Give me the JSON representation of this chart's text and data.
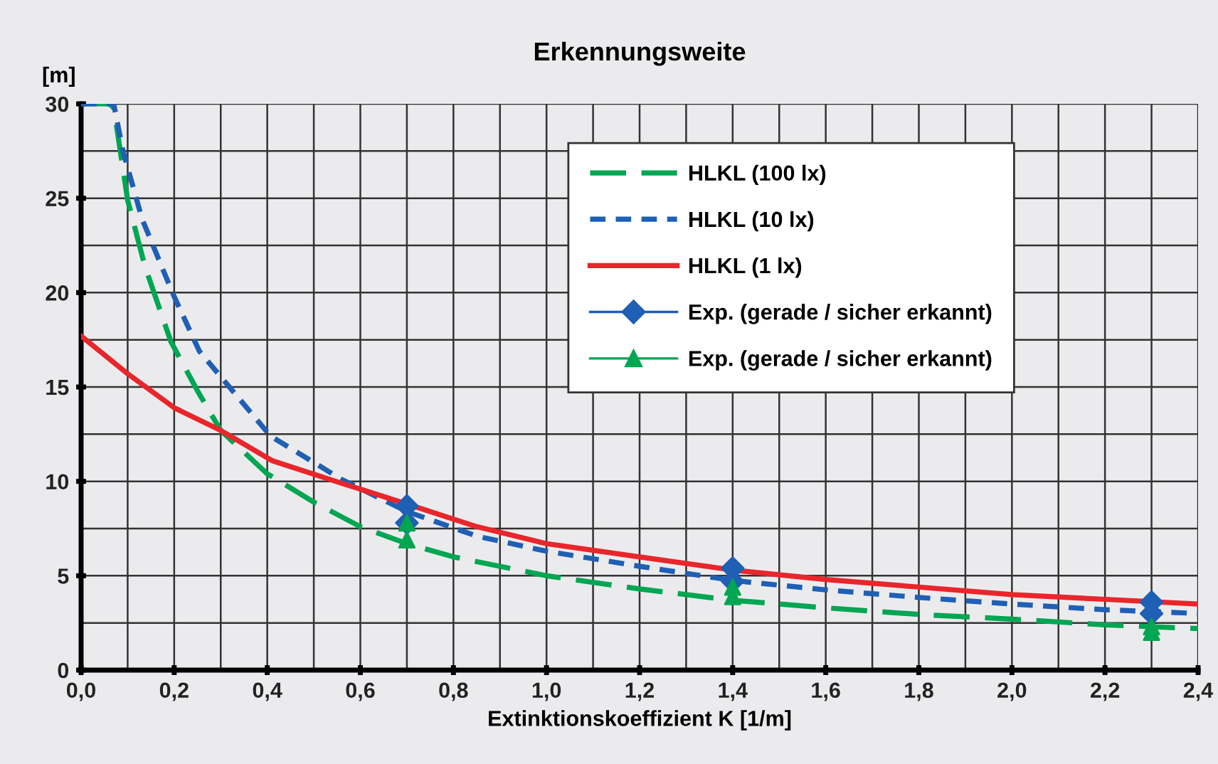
{
  "chart_data": {
    "type": "line",
    "title": "Erkennungsweite",
    "ylabel": "[m]",
    "xlabel": "Extinktionskoeffizient K [1/m]",
    "xlim": [
      0,
      2.4
    ],
    "xticks": [
      {
        "value": 0,
        "label": "0,0"
      },
      {
        "value": 0.2,
        "label": "0,2"
      },
      {
        "value": 0.4,
        "label": "0,4"
      },
      {
        "value": 0.6,
        "label": "0,6"
      },
      {
        "value": 0.8,
        "label": "0,8"
      },
      {
        "value": 1.0,
        "label": "1,0"
      },
      {
        "value": 1.2,
        "label": "1,2"
      },
      {
        "value": 1.4,
        "label": "1,4"
      },
      {
        "value": 1.6,
        "label": "1,6"
      },
      {
        "value": 1.8,
        "label": "1,8"
      },
      {
        "value": 2.0,
        "label": "2,0"
      },
      {
        "value": 2.2,
        "label": "2,2"
      },
      {
        "value": 2.4,
        "label": "2,4"
      }
    ],
    "ylim": [
      0,
      30
    ],
    "yticks": [
      0,
      5,
      10,
      15,
      20,
      25,
      30
    ],
    "grid": true,
    "legend": "top right",
    "series": [
      {
        "name": "HLKL (100 lx)",
        "color": "#00a651",
        "line_style": "dashed",
        "x": [
          0,
          0.06,
          0.07,
          0.08,
          0.1,
          0.137,
          0.193,
          0.25,
          0.3,
          0.4,
          0.5,
          0.6,
          0.7,
          0.8,
          1.0,
          1.2,
          1.4,
          1.6,
          1.8,
          2.0,
          2.2,
          2.4
        ],
        "values": [
          30,
          30,
          29.8,
          28.2,
          24.9,
          21.4,
          17.4,
          14.8,
          12.7,
          10.4,
          8.9,
          7.6,
          6.7,
          6.0,
          5.0,
          4.3,
          3.7,
          3.3,
          2.95,
          2.7,
          2.4,
          2.2
        ]
      },
      {
        "name": "HLKL (10 lx)",
        "color": "#1f5fb4",
        "line_style": "dotted",
        "x": [
          0,
          0.07,
          0.09,
          0.131,
          0.198,
          0.254,
          0.305,
          0.407,
          0.56,
          0.7,
          0.85,
          1.0,
          1.2,
          1.4,
          1.6,
          1.8,
          2.0,
          2.2,
          2.4
        ],
        "values": [
          30,
          30,
          27.5,
          23.9,
          19.9,
          16.9,
          15.4,
          12.4,
          10.1,
          8.4,
          7.1,
          6.3,
          5.5,
          4.75,
          4.25,
          3.85,
          3.5,
          3.2,
          3.0
        ]
      },
      {
        "name": "HLKL (1 lx)",
        "color": "#e8262b",
        "line_style": "solid",
        "x": [
          0,
          0.1,
          0.2,
          0.3,
          0.41,
          0.56,
          0.7,
          0.85,
          1.0,
          1.2,
          1.4,
          1.6,
          1.8,
          2.0,
          2.2,
          2.4
        ],
        "values": [
          17.7,
          15.7,
          13.9,
          12.7,
          11.1,
          9.9,
          8.8,
          7.6,
          6.7,
          6.0,
          5.3,
          4.8,
          4.4,
          4.0,
          3.75,
          3.5
        ]
      },
      {
        "name": "Exp. (gerade / sicher erkannt)",
        "type": "scatter",
        "marker": "diamond",
        "color": "#1f5fb4",
        "x": [
          0.7,
          0.7,
          1.4,
          1.4,
          2.3,
          2.3
        ],
        "values": [
          8.7,
          7.8,
          5.4,
          4.7,
          3.6,
          3.0
        ]
      },
      {
        "name": "Exp. (gerade / sicher erkannt)",
        "type": "scatter",
        "marker": "triangle",
        "color": "#00a651",
        "x": [
          0.7,
          0.7,
          1.4,
          1.4,
          2.3,
          2.3
        ],
        "values": [
          7.8,
          6.9,
          4.4,
          3.9,
          2.3,
          2.0
        ]
      }
    ]
  }
}
